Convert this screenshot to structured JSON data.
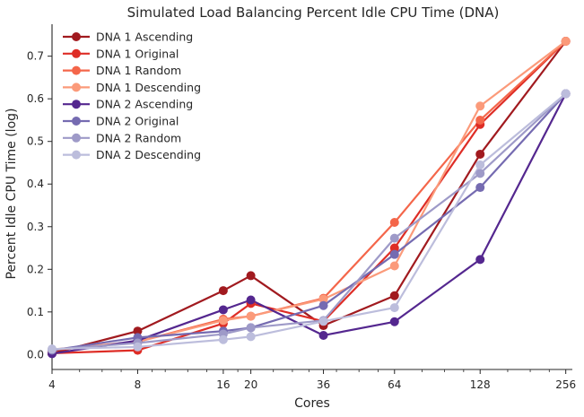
{
  "chart_data": {
    "type": "line",
    "title": "Simulated Load Balancing Percent Idle CPU Time (DNA)",
    "xlabel": "Cores",
    "ylabel": "Percent Idle CPU Time (log)",
    "x_scale": "log2",
    "x": [
      4,
      8,
      16,
      20,
      36,
      64,
      128,
      256
    ],
    "xticks": [
      "4",
      "8",
      "16",
      "20",
      "36",
      "64",
      "128",
      "256"
    ],
    "xlim": [
      4,
      270
    ],
    "ylim": [
      -0.035,
      0.775
    ],
    "yticks": [
      "0.0",
      "0.1",
      "0.2",
      "0.3",
      "0.4",
      "0.5",
      "0.6",
      "0.7"
    ],
    "ytick_values": [
      0.0,
      0.1,
      0.2,
      0.3,
      0.4,
      0.5,
      0.6,
      0.7
    ],
    "grid": false,
    "legend_position": "top-left",
    "series": [
      {
        "name": "DNA 1 Ascending",
        "color": "#a11a1f",
        "values": [
          0.003,
          0.055,
          0.15,
          0.185,
          0.068,
          0.138,
          0.47,
          0.735
        ]
      },
      {
        "name": "DNA 1 Original",
        "color": "#de2d26",
        "values": [
          0.003,
          0.01,
          0.073,
          0.12,
          0.078,
          0.25,
          0.54,
          0.735
        ]
      },
      {
        "name": "DNA 1 Random",
        "color": "#f4664a",
        "values": [
          0.01,
          0.03,
          0.083,
          0.09,
          0.132,
          0.31,
          0.55,
          0.735
        ]
      },
      {
        "name": "DNA 1 Descending",
        "color": "#fb9a7a",
        "values": [
          0.012,
          0.03,
          0.08,
          0.09,
          0.13,
          0.208,
          0.583,
          0.735
        ]
      },
      {
        "name": "DNA 2 Ascending",
        "color": "#54278f",
        "values": [
          0.002,
          0.033,
          0.105,
          0.128,
          0.045,
          0.077,
          0.223,
          0.612
        ]
      },
      {
        "name": "DNA 2 Original",
        "color": "#756bb1",
        "values": [
          0.01,
          0.04,
          0.055,
          0.063,
          0.115,
          0.235,
          0.392,
          0.612
        ]
      },
      {
        "name": "DNA 2 Random",
        "color": "#9e9ac8",
        "values": [
          0.012,
          0.027,
          0.048,
          0.063,
          0.08,
          0.273,
          0.425,
          0.612
        ]
      },
      {
        "name": "DNA 2 Descending",
        "color": "#bcbddc",
        "values": [
          0.013,
          0.018,
          0.035,
          0.042,
          0.078,
          0.11,
          0.445,
          0.612
        ]
      }
    ]
  }
}
